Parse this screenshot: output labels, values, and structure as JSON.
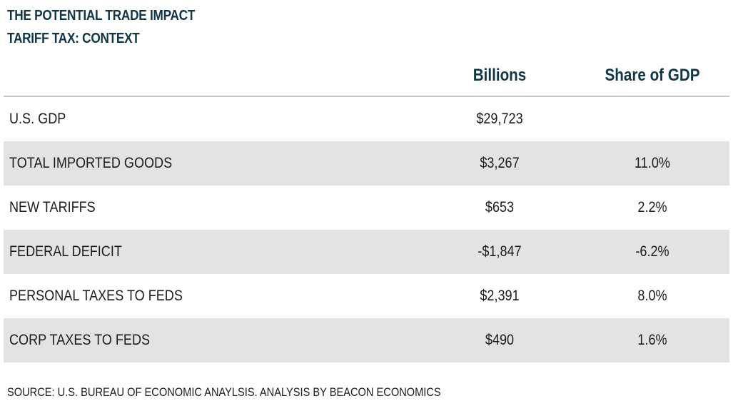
{
  "title": {
    "line1": "THE POTENTIAL TRADE IMPACT",
    "line2": "TARIFF TAX: CONTEXT"
  },
  "columns": {
    "item": "",
    "billions": "Billions",
    "share": "Share of GDP"
  },
  "rows": [
    {
      "label": "U.S. GDP",
      "billions": "$29,723",
      "share": ""
    },
    {
      "label": "TOTAL IMPORTED GOODS",
      "billions": "$3,267",
      "share": "11.0%"
    },
    {
      "label": "NEW TARIFFS",
      "billions": "$653",
      "share": "2.2%"
    },
    {
      "label": "FEDERAL DEFICIT",
      "billions": "-$1,847",
      "share": "-6.2%"
    },
    {
      "label": "PERSONAL TAXES TO FEDS",
      "billions": "$2,391",
      "share": "8.0%"
    },
    {
      "label": "CORP TAXES TO FEDS",
      "billions": "$490",
      "share": "1.6%"
    }
  ],
  "source": "SOURCE: U.S. BUREAU OF ECONOMIC ANAYLSIS. ANALYSIS BY BEACON ECONOMICS",
  "colors": {
    "heading": "#0f3547",
    "row_shade": "#e3e3e3",
    "rule": "#c8c8c8"
  },
  "chart_data": {
    "type": "table",
    "title": "THE POTENTIAL TRADE IMPACT",
    "subtitle": "TARIFF TAX: CONTEXT",
    "columns": [
      "Billions",
      "Share of GDP"
    ],
    "categories": [
      "U.S. GDP",
      "TOTAL IMPORTED GOODS",
      "NEW TARIFFS",
      "FEDERAL DEFICIT",
      "PERSONAL TAXES TO FEDS",
      "CORP TAXES TO FEDS"
    ],
    "series": [
      {
        "name": "Billions",
        "values": [
          29723,
          3267,
          653,
          -1847,
          2391,
          490
        ]
      },
      {
        "name": "Share of GDP",
        "values": [
          null,
          11.0,
          2.2,
          -6.2,
          8.0,
          1.6
        ]
      }
    ]
  }
}
